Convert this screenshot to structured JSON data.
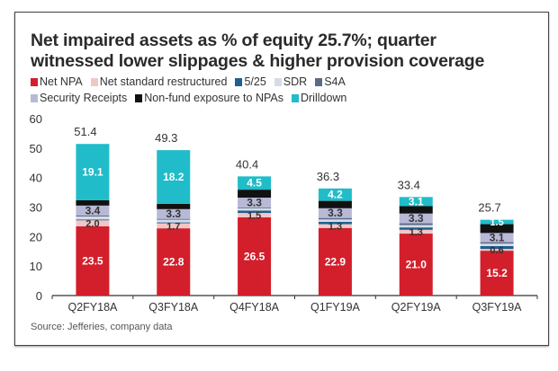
{
  "chart_data": {
    "type": "bar",
    "stacked": true,
    "title": "Net impaired assets as % of equity 25.7%; quarter witnessed lower slippages & higher provision coverage",
    "xlabel": "",
    "ylabel": "",
    "ylim": [
      0,
      60
    ],
    "yticks": [
      0,
      10,
      20,
      30,
      40,
      50,
      60
    ],
    "grid": false,
    "legend_position": "top",
    "categories": [
      "Q2FY18A",
      "Q3FY18A",
      "Q4FY18A",
      "Q1FY19A",
      "Q2FY19A",
      "Q3FY19A"
    ],
    "totals": [
      "51.4",
      "49.3",
      "40.4",
      "36.3",
      "33.4",
      "25.7"
    ],
    "series": [
      {
        "name": "Net NPA",
        "color": "#d21f2b",
        "values": [
          23.5,
          22.8,
          26.5,
          22.9,
          21.0,
          15.2
        ],
        "labels": [
          "23.5",
          "22.8",
          "26.5",
          "22.9",
          "21.0",
          "15.2"
        ],
        "label_color": "#ffffff"
      },
      {
        "name": "Net standard restructured",
        "color": "#f3c6c6",
        "values": [
          2.0,
          1.7,
          1.5,
          1.3,
          1.3,
          0.6
        ],
        "labels": [
          "2.0",
          "1.7",
          "1.5",
          "1.3",
          "1.3",
          "0.6"
        ],
        "label_color": "#333333"
      },
      {
        "name": "5/25",
        "color": "#1f5f8f",
        "values": [
          0.3,
          0.3,
          0.8,
          0.8,
          0.8,
          1.0
        ],
        "labels": [
          null,
          null,
          null,
          null,
          null,
          null
        ]
      },
      {
        "name": "SDR",
        "color": "#d5dce8",
        "values": [
          1.0,
          0.9,
          0.8,
          0.8,
          0.8,
          0.8
        ],
        "labels": [
          null,
          null,
          null,
          null,
          null,
          null
        ]
      },
      {
        "name": "S4A",
        "color": "#5c6a85",
        "values": [
          0.3,
          0.3,
          0.3,
          0.5,
          0.6,
          0.5
        ],
        "labels": [
          null,
          null,
          null,
          null,
          null,
          null
        ]
      },
      {
        "name": "Security Receipts",
        "color": "#b7b9d6",
        "values": [
          3.4,
          3.3,
          3.3,
          3.3,
          3.3,
          3.1
        ],
        "labels": [
          "3.4",
          "3.3",
          "3.3",
          "3.3",
          "3.3",
          "3.1"
        ],
        "label_color": "#333333"
      },
      {
        "name": "Non-fund exposure to NPAs",
        "color": "#111111",
        "values": [
          1.8,
          1.8,
          2.7,
          2.5,
          2.5,
          3.0
        ],
        "labels": [
          null,
          null,
          null,
          null,
          null,
          null
        ]
      },
      {
        "name": "Drilldown",
        "color": "#20bcc9",
        "values": [
          19.1,
          18.2,
          4.5,
          4.2,
          3.1,
          1.5
        ],
        "labels": [
          "19.1",
          "18.2",
          "4.5",
          "4.2",
          "3.1",
          "1.5"
        ],
        "label_color": "#ffffff"
      }
    ]
  },
  "source": "Source: Jefferies, company data"
}
